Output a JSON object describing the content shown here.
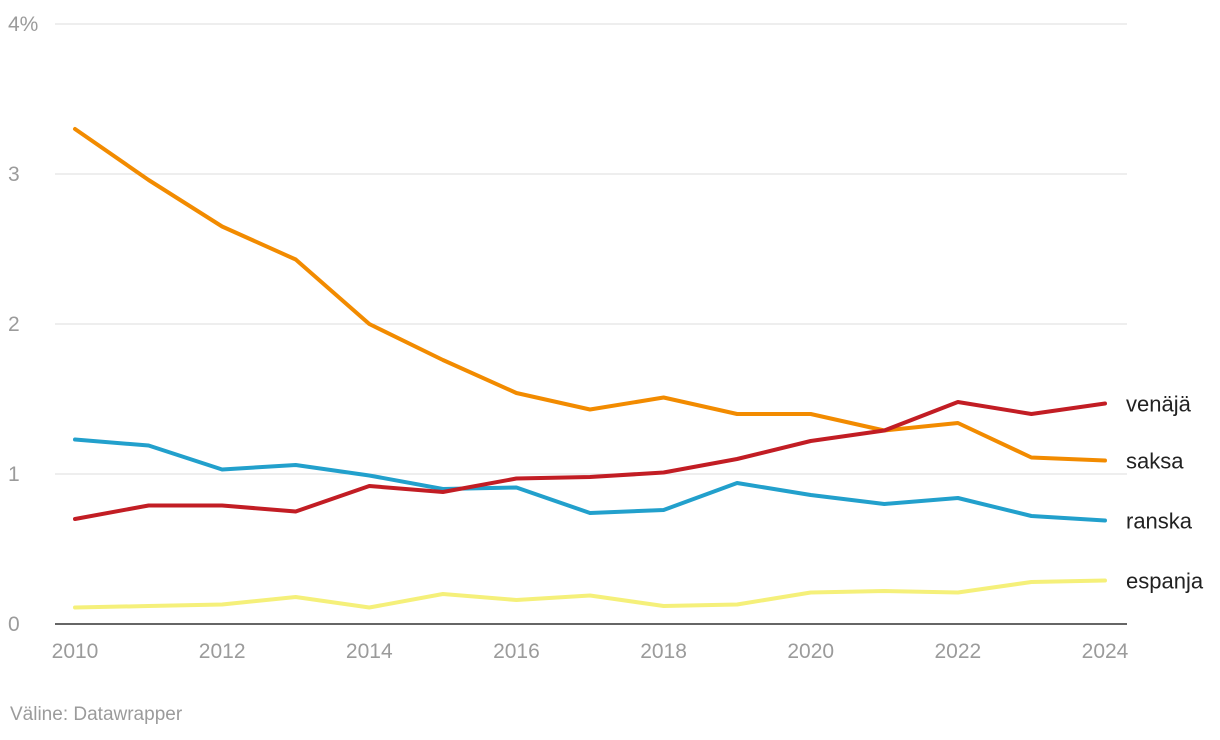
{
  "chart_data": {
    "type": "line",
    "title": "",
    "xlabel": "",
    "ylabel": "",
    "x": [
      2010,
      2011,
      2012,
      2013,
      2014,
      2015,
      2016,
      2017,
      2018,
      2019,
      2020,
      2021,
      2022,
      2023,
      2024
    ],
    "x_ticks": [
      "2010",
      "2012",
      "2014",
      "2016",
      "2018",
      "2020",
      "2022",
      "2024"
    ],
    "x_tick_values": [
      2010,
      2012,
      2014,
      2016,
      2018,
      2020,
      2022,
      2024
    ],
    "xlim": [
      2010,
      2024
    ],
    "y_ticks": [
      "0",
      "1",
      "2",
      "3",
      "4%"
    ],
    "y_tick_values": [
      0,
      1,
      2,
      3,
      4
    ],
    "ylim": [
      0,
      4
    ],
    "grid": true,
    "legend": "direct labels at right end of lines",
    "series": [
      {
        "name": "venäjä",
        "color": "#c21d24",
        "values": [
          0.7,
          0.79,
          0.79,
          0.75,
          0.92,
          0.88,
          0.97,
          0.98,
          1.01,
          1.1,
          1.22,
          1.29,
          1.48,
          1.4,
          1.47
        ]
      },
      {
        "name": "saksa",
        "color": "#f28b00",
        "values": [
          3.3,
          2.96,
          2.65,
          2.43,
          2.0,
          1.76,
          1.54,
          1.43,
          1.51,
          1.4,
          1.4,
          1.29,
          1.34,
          1.11,
          1.09
        ]
      },
      {
        "name": "ranska",
        "color": "#22a0cc",
        "values": [
          1.23,
          1.19,
          1.03,
          1.06,
          0.99,
          0.9,
          0.91,
          0.74,
          0.76,
          0.94,
          0.86,
          0.8,
          0.84,
          0.72,
          0.69
        ]
      },
      {
        "name": "espanja",
        "color": "#f5f07a",
        "values": [
          0.11,
          0.12,
          0.13,
          0.18,
          0.11,
          0.2,
          0.16,
          0.19,
          0.12,
          0.13,
          0.21,
          0.22,
          0.21,
          0.28,
          0.29
        ]
      }
    ]
  },
  "source": "Väline: Datawrapper"
}
